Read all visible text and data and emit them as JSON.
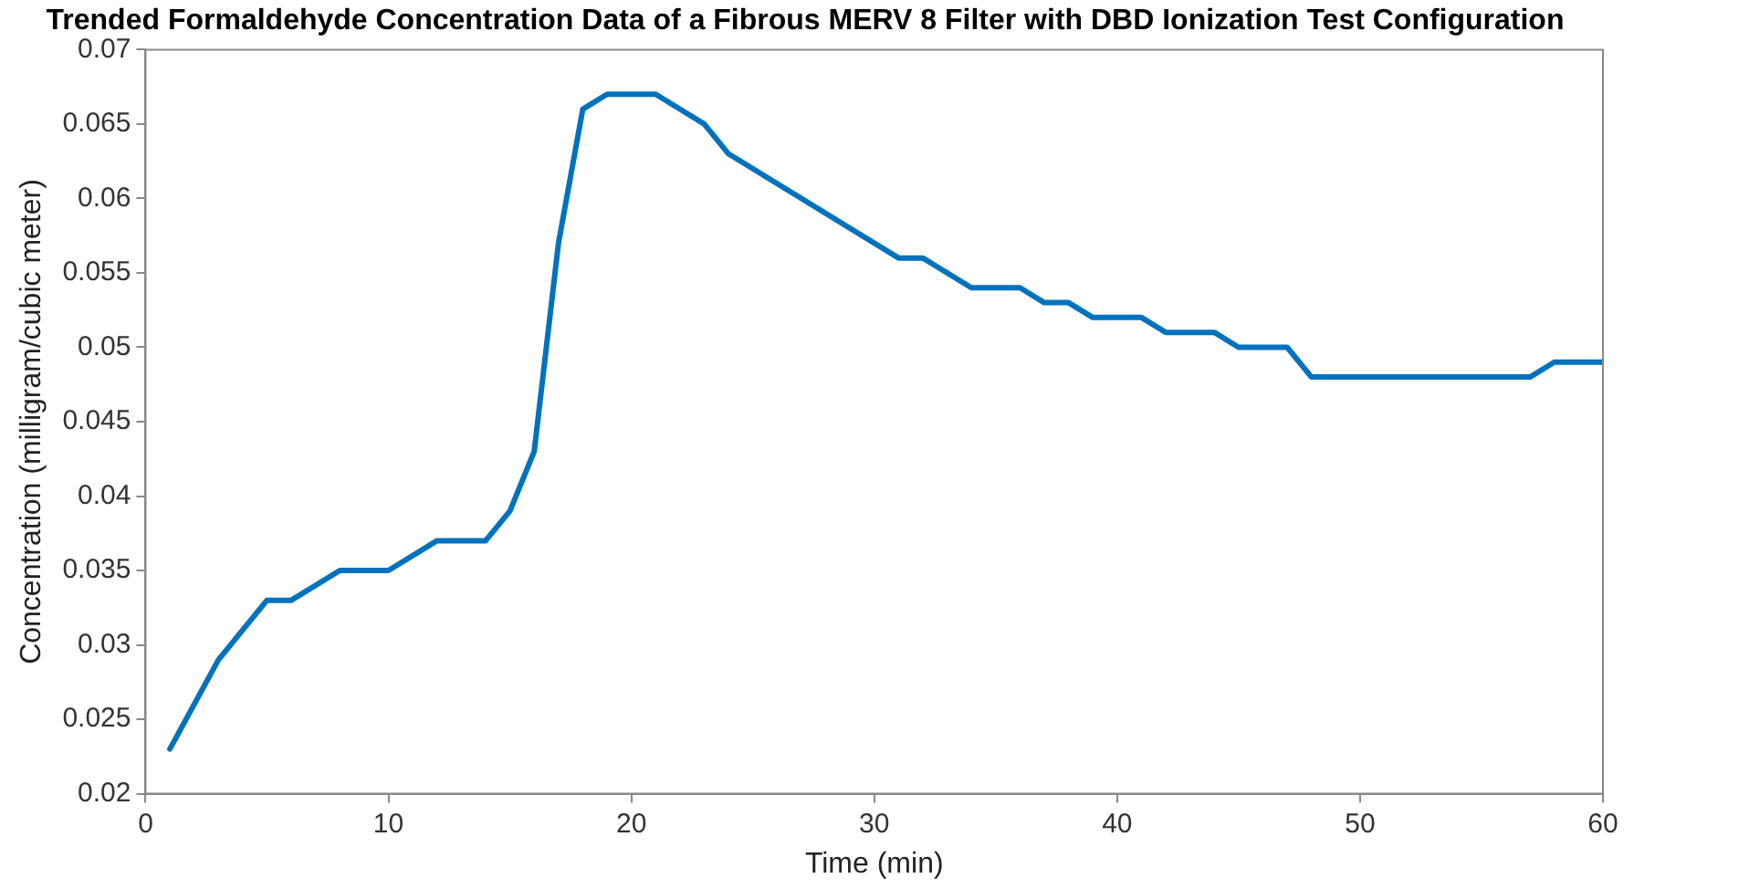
{
  "chart_data": {
    "type": "line",
    "title": "Trended Formaldehyde Concentration Data of a Fibrous MERV 8 Filter with DBD Ionization Test Configuration",
    "xlabel": "Time (min)",
    "ylabel": "Concentration (milligram/cubic meter)",
    "x": [
      1,
      3,
      5,
      6,
      8,
      10,
      12,
      14,
      15,
      16,
      17,
      18,
      19,
      21,
      23,
      24,
      31,
      32,
      34,
      36,
      37,
      38,
      39,
      41,
      42,
      44,
      45,
      47,
      48,
      57,
      58,
      60
    ],
    "series": [
      {
        "color": "#0072bd",
        "values": [
          0.023,
          0.029,
          0.033,
          0.033,
          0.035,
          0.035,
          0.037,
          0.037,
          0.039,
          0.043,
          0.057,
          0.066,
          0.067,
          0.067,
          0.065,
          0.063,
          0.056,
          0.056,
          0.054,
          0.054,
          0.053,
          0.053,
          0.052,
          0.052,
          0.051,
          0.051,
          0.05,
          0.05,
          0.048,
          0.048,
          0.049,
          0.049
        ]
      }
    ],
    "xlim": [
      0,
      60
    ],
    "xticks": [
      0,
      10,
      20,
      30,
      40,
      50,
      60
    ],
    "ylim": [
      0.02,
      0.07
    ],
    "yticks": [
      0.02,
      0.025,
      0.03,
      0.035,
      0.04,
      0.045,
      0.05,
      0.055,
      0.06,
      0.065,
      0.07
    ],
    "grid": false,
    "legend": false,
    "marker": "none",
    "line_style": "solid"
  }
}
